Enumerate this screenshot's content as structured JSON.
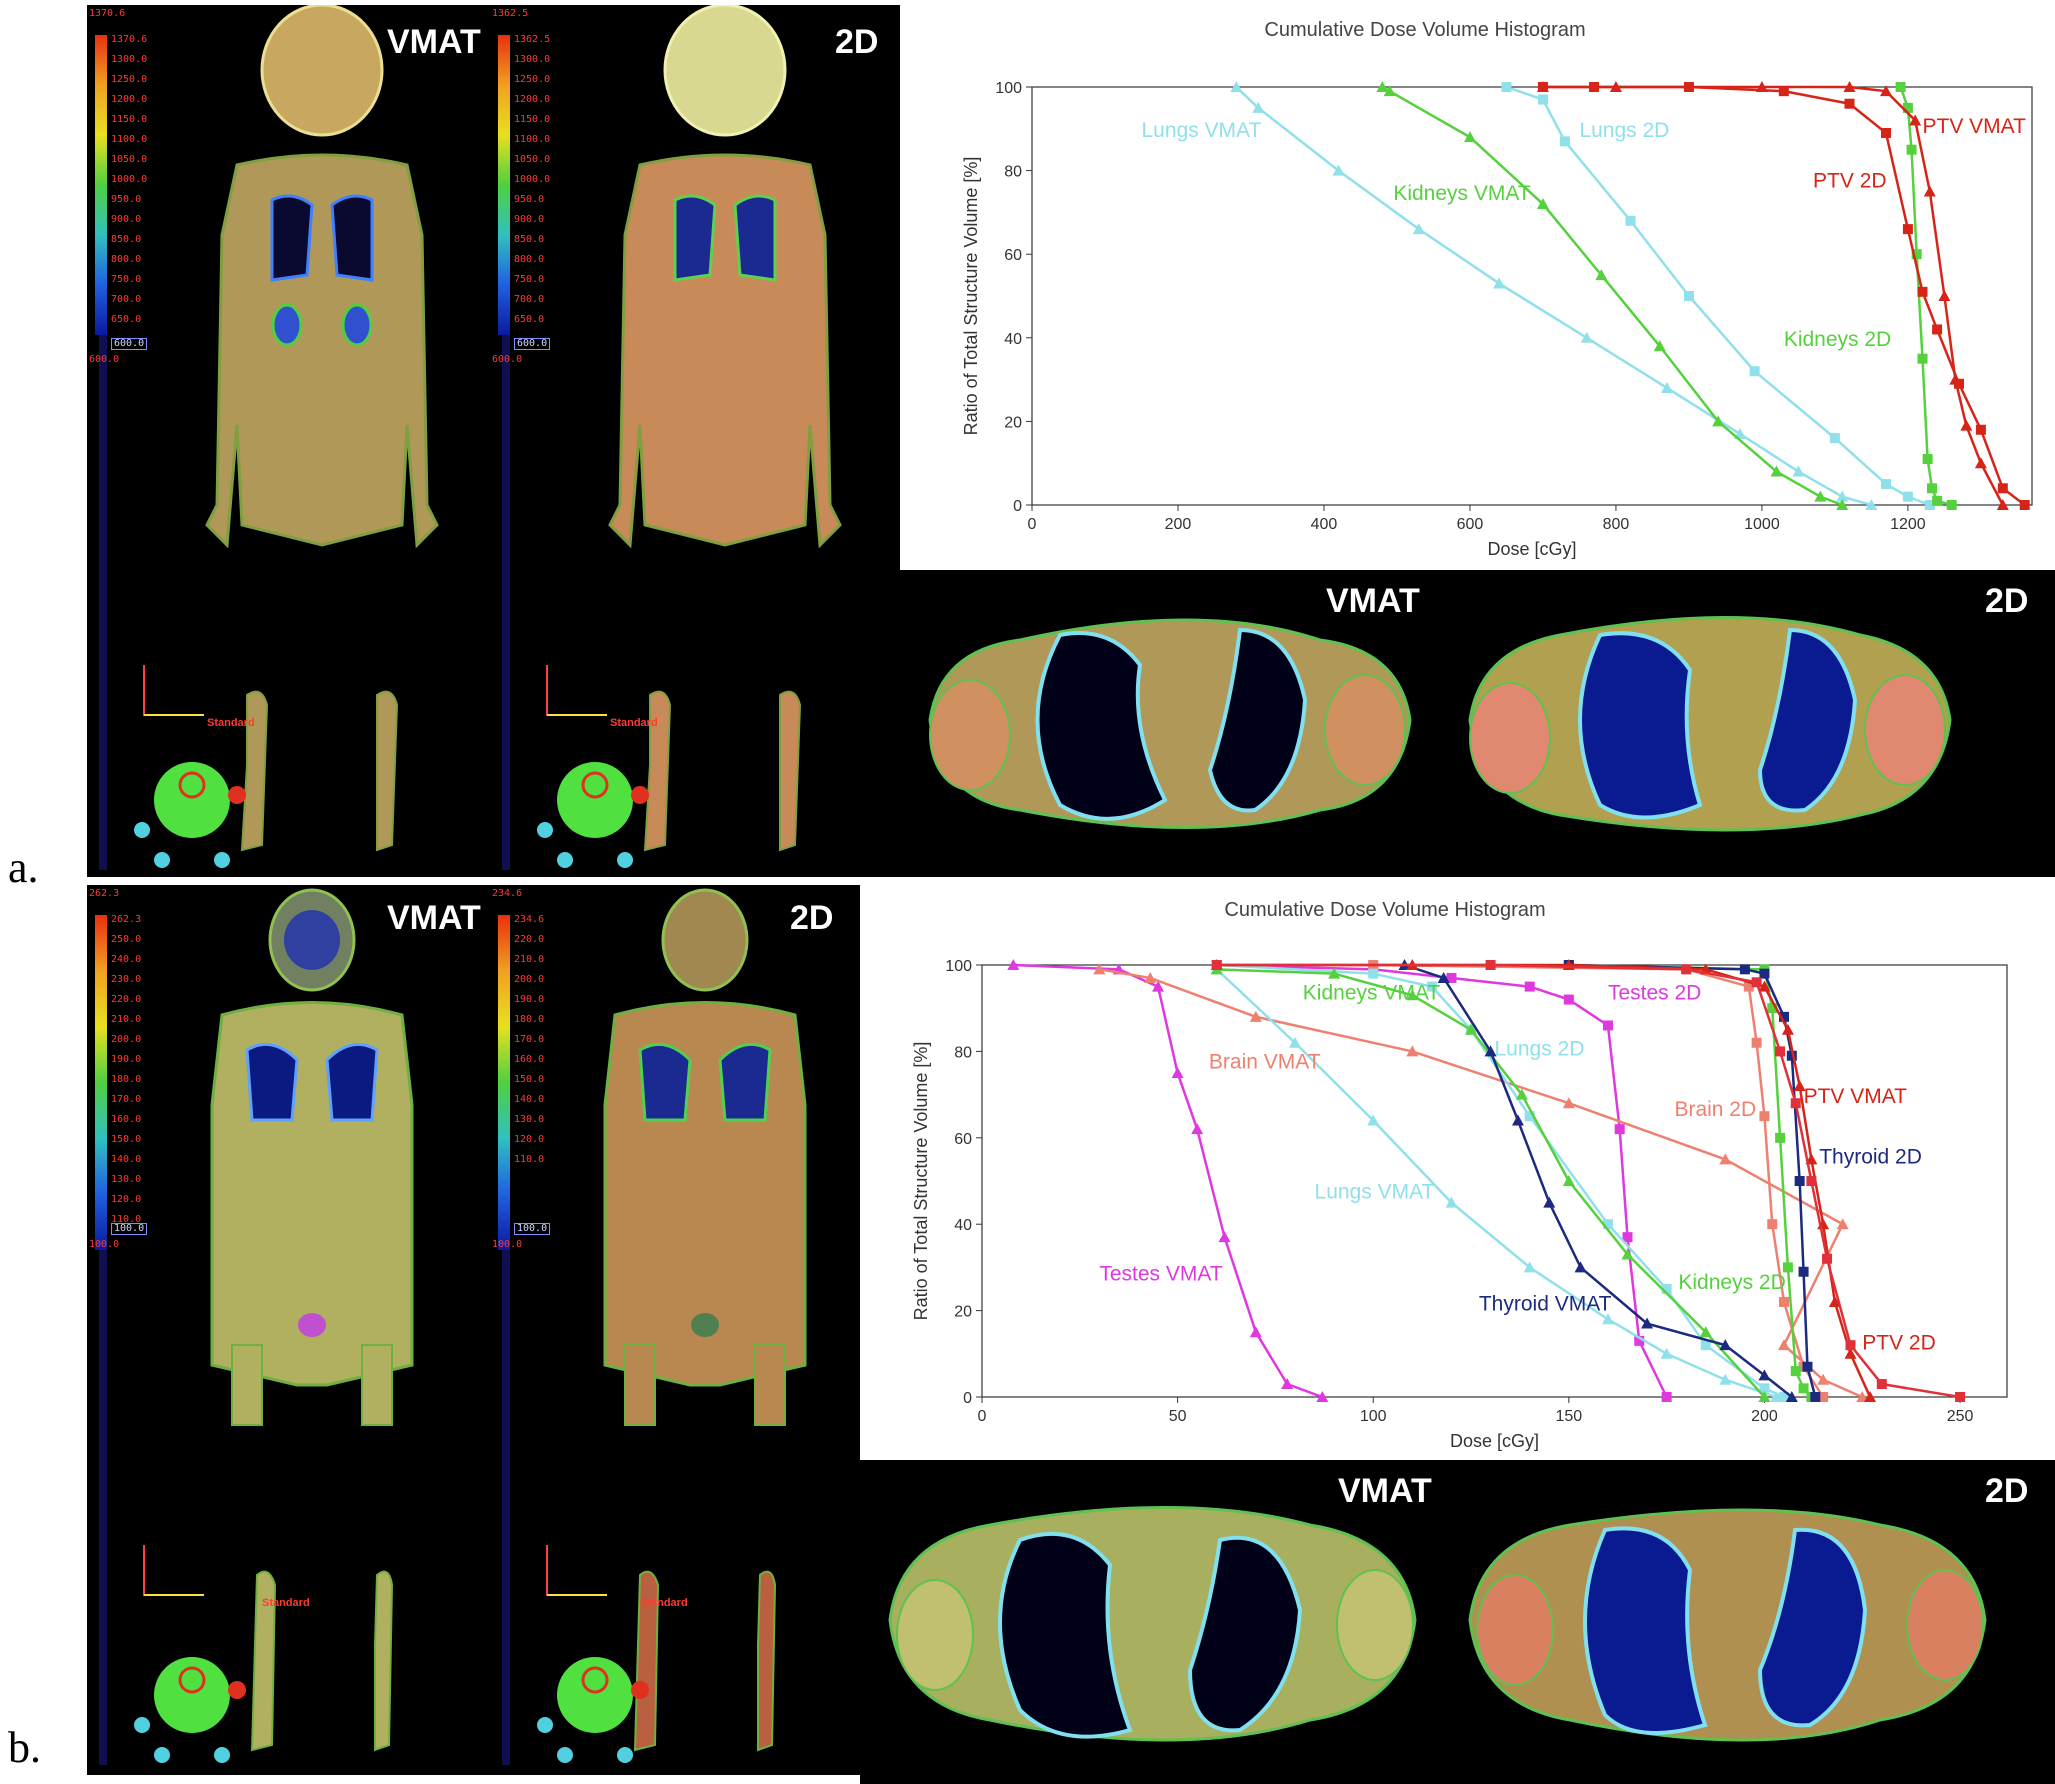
{
  "panels": [
    {
      "letter": "a.",
      "coronal": [
        {
          "label": "VMAT",
          "cbar_max": "1370.6",
          "cbar_top": "1370.6",
          "cbar_min": "600.0",
          "cbar_box": "600.0",
          "ticks": [
            "1300.0",
            "1250.0",
            "1200.0",
            "1150.0",
            "1100.0",
            "1050.0",
            "1000.0",
            "950.0",
            "900.0",
            "850.0",
            "800.0",
            "750.0",
            "700.0",
            "650.0"
          ],
          "orientation": "Standard"
        },
        {
          "label": "2D",
          "cbar_max": "1362.5",
          "cbar_top": "1362.5",
          "cbar_min": "600.0",
          "cbar_box": "600.0",
          "ticks": [
            "1300.0",
            "1250.0",
            "1200.0",
            "1150.0",
            "1100.0",
            "1050.0",
            "1000.0",
            "950.0",
            "900.0",
            "850.0",
            "800.0",
            "750.0",
            "700.0",
            "650.0"
          ],
          "orientation": "Standard"
        }
      ],
      "axial_labels": [
        "VMAT",
        "2D"
      ]
    },
    {
      "letter": "b.",
      "coronal": [
        {
          "label": "VMAT",
          "cbar_max": "262.3",
          "cbar_top": "262.3",
          "cbar_min": "100.0",
          "cbar_box": "100.0",
          "ticks": [
            "250.0",
            "240.0",
            "230.0",
            "220.0",
            "210.0",
            "200.0",
            "190.0",
            "180.0",
            "170.0",
            "160.0",
            "150.0",
            "140.0",
            "130.0",
            "120.0",
            "110.0"
          ],
          "orientation": "Standard"
        },
        {
          "label": "2D",
          "cbar_max": "234.6",
          "cbar_top": "234.6",
          "cbar_min": "100.0",
          "cbar_box": "100.0",
          "ticks": [
            "220.0",
            "210.0",
            "200.0",
            "190.0",
            "180.0",
            "170.0",
            "160.0",
            "150.0",
            "140.0",
            "130.0",
            "120.0",
            "110.0"
          ],
          "orientation": "Standard"
        }
      ],
      "axial_labels": [
        "VMAT",
        "2D"
      ]
    }
  ],
  "colors": {
    "vmat_lungs": "#8fe0ea",
    "kidneys": "#55d13e",
    "ptv": "#d62418",
    "ptv2d": "#e0303a",
    "brain": "#ee8070",
    "testes": "#df38df",
    "thyroid": "#1c2a80"
  },
  "chart_data": [
    {
      "type": "line",
      "title": "Cumulative Dose Volume Histogram",
      "xlabel": "Dose [cGy]",
      "ylabel": "Ratio of Total Structure Volume [%]",
      "xlim": [
        0,
        1370
      ],
      "ylim": [
        0,
        100
      ],
      "xticks": [
        0,
        200,
        400,
        600,
        800,
        1000,
        1200
      ],
      "yticks": [
        0,
        20,
        40,
        60,
        80,
        100
      ],
      "series": [
        {
          "name": "Lungs VMAT",
          "color": "#8fe0ea",
          "marker": "triangle",
          "x": [
            280,
            310,
            420,
            530,
            640,
            760,
            870,
            970,
            1050,
            1110,
            1150
          ],
          "y": [
            100,
            95,
            80,
            66,
            53,
            40,
            28,
            17,
            8,
            2,
            0
          ]
        },
        {
          "name": "Lungs 2D",
          "color": "#8fe0ea",
          "marker": "square",
          "x": [
            650,
            700,
            730,
            820,
            900,
            990,
            1100,
            1170,
            1200,
            1230
          ],
          "y": [
            100,
            97,
            87,
            68,
            50,
            32,
            16,
            5,
            2,
            0
          ]
        },
        {
          "name": "Kidneys VMAT",
          "color": "#55d13e",
          "marker": "triangle",
          "x": [
            480,
            490,
            600,
            700,
            780,
            860,
            940,
            1020,
            1080,
            1110
          ],
          "y": [
            100,
            99,
            88,
            72,
            55,
            38,
            20,
            8,
            2,
            0
          ]
        },
        {
          "name": "Kidneys 2D",
          "color": "#55d13e",
          "marker": "square",
          "x": [
            1190,
            1200,
            1205,
            1212,
            1220,
            1227,
            1233,
            1240,
            1260
          ],
          "y": [
            100,
            95,
            85,
            60,
            35,
            11,
            4,
            1,
            0
          ]
        },
        {
          "name": "PTV VMAT",
          "color": "#d62418",
          "marker": "triangle",
          "x": [
            700,
            800,
            1000,
            1120,
            1170,
            1210,
            1230,
            1250,
            1265,
            1280,
            1300,
            1330
          ],
          "y": [
            100,
            100,
            100,
            100,
            99,
            92,
            75,
            50,
            30,
            19,
            10,
            0
          ]
        },
        {
          "name": "PTV 2D",
          "color": "#d62418",
          "marker": "square",
          "x": [
            700,
            770,
            900,
            1030,
            1120,
            1170,
            1200,
            1220,
            1240,
            1270,
            1300,
            1330,
            1360
          ],
          "y": [
            100,
            100,
            100,
            99,
            96,
            89,
            66,
            51,
            42,
            29,
            18,
            4,
            0
          ]
        }
      ]
    },
    {
      "type": "line",
      "title": "Cumulative Dose Volume Histogram",
      "xlabel": "Dose [cGy]",
      "ylabel": "Ratio of Total Structure Volume [%]",
      "xlim": [
        0,
        262
      ],
      "ylim": [
        0,
        100
      ],
      "xticks": [
        0,
        50,
        100,
        150,
        200,
        250
      ],
      "yticks": [
        0,
        20,
        40,
        60,
        80,
        100
      ],
      "series": [
        {
          "name": "Testes VMAT",
          "color": "#df38df",
          "marker": "triangle",
          "x": [
            8,
            35,
            45,
            50,
            55,
            62,
            70,
            78,
            87
          ],
          "y": [
            100,
            99,
            95,
            75,
            62,
            37,
            15,
            3,
            0
          ]
        },
        {
          "name": "Testes 2D",
          "color": "#df38df",
          "marker": "square",
          "x": [
            60,
            100,
            120,
            140,
            150,
            160,
            163,
            165,
            168,
            175
          ],
          "y": [
            100,
            99,
            97,
            95,
            92,
            86,
            62,
            37,
            13,
            0
          ]
        },
        {
          "name": "Brain VMAT",
          "color": "#ee8070",
          "marker": "triangle",
          "x": [
            30,
            43,
            70,
            110,
            150,
            190,
            220,
            205,
            215,
            225
          ],
          "y": [
            99,
            97,
            88,
            80,
            68,
            55,
            40,
            12,
            4,
            0
          ]
        },
        {
          "name": "Brain 2D",
          "color": "#ee8070",
          "marker": "square",
          "x": [
            100,
            180,
            196,
            198,
            200,
            202,
            205,
            210,
            215
          ],
          "y": [
            100,
            99,
            95,
            82,
            65,
            40,
            22,
            7,
            0
          ]
        },
        {
          "name": "Lungs VMAT",
          "color": "#8fe0ea",
          "marker": "triangle",
          "x": [
            60,
            80,
            100,
            120,
            140,
            160,
            175,
            190,
            203
          ],
          "y": [
            99,
            82,
            64,
            45,
            30,
            18,
            10,
            4,
            0
          ]
        },
        {
          "name": "Lungs 2D",
          "color": "#8fe0ea",
          "marker": "square",
          "x": [
            60,
            100,
            115,
            125,
            140,
            160,
            175,
            185,
            200,
            205
          ],
          "y": [
            100,
            98,
            95,
            85,
            65,
            40,
            25,
            12,
            2,
            0
          ]
        },
        {
          "name": "Kidneys VMAT",
          "color": "#55d13e",
          "marker": "triangle",
          "x": [
            60,
            90,
            110,
            125,
            138,
            150,
            165,
            185,
            200
          ],
          "y": [
            99,
            98,
            93,
            85,
            70,
            50,
            33,
            15,
            0
          ]
        },
        {
          "name": "Kidneys 2D",
          "color": "#55d13e",
          "marker": "square",
          "x": [
            150,
            200,
            202,
            204,
            206,
            208,
            210,
            212
          ],
          "y": [
            100,
            99,
            90,
            60,
            30,
            6,
            2,
            0
          ]
        },
        {
          "name": "Thyroid VMAT",
          "color": "#1c2a80",
          "marker": "triangle",
          "x": [
            108,
            118,
            130,
            137,
            145,
            153,
            170,
            190,
            200,
            207
          ],
          "y": [
            100,
            97,
            80,
            64,
            45,
            30,
            17,
            12,
            5,
            0
          ]
        },
        {
          "name": "Thyroid 2D",
          "color": "#1c2a80",
          "marker": "square",
          "x": [
            150,
            195,
            200,
            205,
            207,
            209,
            210,
            211,
            213
          ],
          "y": [
            100,
            99,
            98,
            88,
            79,
            50,
            29,
            7,
            0
          ]
        },
        {
          "name": "PTV VMAT",
          "color": "#d62418",
          "marker": "triangle",
          "x": [
            60,
            110,
            150,
            185,
            200,
            206,
            209,
            212,
            215,
            218,
            222,
            227
          ],
          "y": [
            100,
            100,
            100,
            99,
            95,
            85,
            72,
            55,
            40,
            22,
            10,
            0
          ]
        },
        {
          "name": "PTV 2D",
          "color": "#e0303a",
          "marker": "square",
          "x": [
            60,
            130,
            180,
            198,
            204,
            208,
            212,
            216,
            222,
            230,
            250
          ],
          "y": [
            100,
            100,
            99,
            96,
            80,
            68,
            50,
            32,
            12,
            3,
            0
          ]
        }
      ]
    }
  ],
  "chart_labels": [
    [
      {
        "text": "Lungs VMAT",
        "color": "#8fe0ea",
        "x": 150,
        "y": 88
      },
      {
        "text": "Lungs 2D",
        "color": "#8fe0ea",
        "x": 750,
        "y": 88
      },
      {
        "text": "Kidneys VMAT",
        "color": "#55d13e",
        "x": 495,
        "y": 73
      },
      {
        "text": "PTV VMAT",
        "color": "#d62418",
        "x": 1220,
        "y": 89
      },
      {
        "text": "PTV 2D",
        "color": "#d62418",
        "x": 1070,
        "y": 76
      },
      {
        "text": "Kidneys 2D",
        "color": "#55d13e",
        "x": 1030,
        "y": 38
      }
    ],
    [
      {
        "text": "Kidneys VMAT",
        "color": "#55d13e",
        "x": 82,
        "y": 92
      },
      {
        "text": "Testes 2D",
        "color": "#df38df",
        "x": 160,
        "y": 92
      },
      {
        "text": "Lungs 2D",
        "color": "#8fe0ea",
        "x": 131,
        "y": 79
      },
      {
        "text": "Brain VMAT",
        "color": "#ee8070",
        "x": 58,
        "y": 76
      },
      {
        "text": "Brain 2D",
        "color": "#ee8070",
        "x": 177,
        "y": 65
      },
      {
        "text": "PTV VMAT",
        "color": "#d62418",
        "x": 210,
        "y": 68
      },
      {
        "text": "Thyroid 2D",
        "color": "#1c2a80",
        "x": 214,
        "y": 54
      },
      {
        "text": "Lungs VMAT",
        "color": "#8fe0ea",
        "x": 85,
        "y": 46
      },
      {
        "text": "Testes VMAT",
        "color": "#df38df",
        "x": 30,
        "y": 27
      },
      {
        "text": "Kidneys 2D",
        "color": "#55d13e",
        "x": 178,
        "y": 25
      },
      {
        "text": "Thyroid VMAT",
        "color": "#1c2a80",
        "x": 127,
        "y": 20
      },
      {
        "text": "PTV 2D",
        "color": "#d62418",
        "x": 225,
        "y": 11
      }
    ]
  ]
}
